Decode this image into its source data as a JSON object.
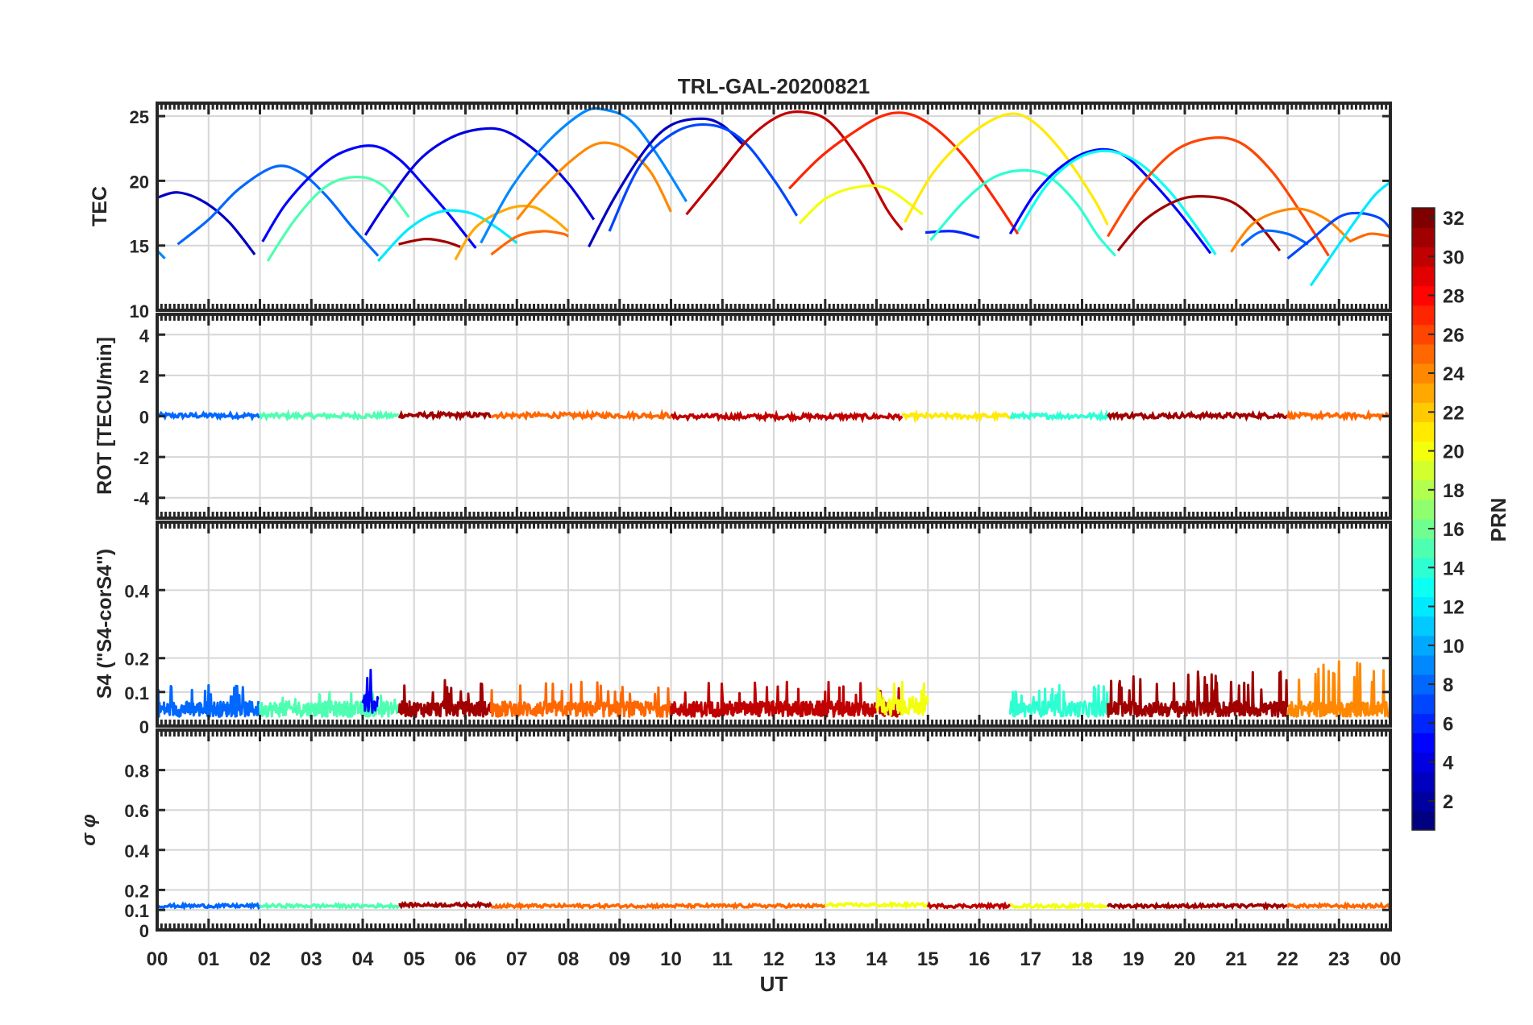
{
  "chart_data": {
    "type": "line",
    "title": "TRL-GAL-20200821",
    "xlabel": "UT",
    "xlim": [
      0,
      24
    ],
    "xtick_labels": [
      "00",
      "01",
      "02",
      "03",
      "04",
      "05",
      "06",
      "07",
      "08",
      "09",
      "10",
      "11",
      "12",
      "13",
      "14",
      "15",
      "16",
      "17",
      "18",
      "19",
      "20",
      "21",
      "22",
      "23",
      "00"
    ],
    "colorbar": {
      "label": "PRN",
      "range": [
        1,
        32
      ],
      "tick_labels": [
        "2",
        "4",
        "6",
        "8",
        "10",
        "12",
        "14",
        "16",
        "18",
        "20",
        "22",
        "24",
        "26",
        "28",
        "30",
        "32"
      ],
      "tick_values": [
        2,
        4,
        6,
        8,
        10,
        12,
        14,
        16,
        18,
        20,
        22,
        24,
        26,
        28,
        30,
        32
      ],
      "colormap": "jet"
    },
    "panels": [
      {
        "id": "tec",
        "ylabel": "TEC",
        "ylim": [
          10,
          26
        ],
        "ytick_values": [
          10,
          15,
          20,
          25
        ],
        "ytick_labels": [
          "10",
          "15",
          "20",
          "25"
        ],
        "series": [
          {
            "prn": 3,
            "x": [
              0.0,
              0.4,
              0.9,
              1.4,
              1.9
            ],
            "y": [
              18.7,
              19.1,
              18.4,
              16.8,
              14.3
            ]
          },
          {
            "prn": 9,
            "x": [
              0.0,
              0.15
            ],
            "y": [
              14.6,
              14.0
            ]
          },
          {
            "prn": 8,
            "x": [
              0.4,
              1.0,
              1.6,
              2.3,
              2.8,
              3.3,
              3.8,
              4.3
            ],
            "y": [
              15.1,
              17.0,
              19.4,
              21.1,
              20.6,
              18.8,
              16.4,
              14.2
            ]
          },
          {
            "prn": 5,
            "x": [
              2.05,
              2.5,
              3.1,
              3.6,
              4.2,
              4.7,
              5.2,
              5.7,
              6.2
            ],
            "y": [
              15.3,
              18.2,
              20.8,
              22.2,
              22.7,
              21.7,
              19.6,
              17.3,
              14.8
            ]
          },
          {
            "prn": 15,
            "x": [
              2.15,
              2.7,
              3.3,
              3.9,
              4.4,
              4.9
            ],
            "y": [
              13.8,
              17.1,
              19.6,
              20.3,
              19.6,
              17.2
            ]
          },
          {
            "prn": 4,
            "x": [
              4.05,
              4.5,
              5.1,
              5.7,
              6.3,
              6.8,
              7.4,
              8.0,
              8.5
            ],
            "y": [
              15.8,
              18.5,
              21.6,
              23.3,
              24.0,
              23.8,
              22.2,
              19.8,
              17.0
            ]
          },
          {
            "prn": 12,
            "x": [
              4.3,
              4.9,
              5.5,
              6.1,
              6.6,
              7.0
            ],
            "y": [
              13.8,
              16.3,
              17.6,
              17.5,
              16.4,
              15.2
            ]
          },
          {
            "prn": 31,
            "x": [
              4.7,
              5.2,
              5.6,
              5.9
            ],
            "y": [
              15.1,
              15.5,
              15.3,
              14.9
            ]
          },
          {
            "prn": 23,
            "x": [
              5.8,
              6.2,
              6.8,
              7.3,
              7.7,
              8.0
            ],
            "y": [
              13.9,
              16.4,
              17.8,
              18.0,
              17.1,
              16.1
            ]
          },
          {
            "prn": 25,
            "x": [
              6.5,
              7.0,
              7.5,
              7.9,
              8.0
            ],
            "y": [
              14.3,
              15.7,
              16.1,
              15.9,
              15.7
            ]
          },
          {
            "prn": 9,
            "x": [
              6.3,
              6.9,
              7.6,
              8.3,
              8.7,
              9.2,
              9.7,
              10.3
            ],
            "y": [
              15.2,
              19.5,
              23.0,
              25.3,
              25.5,
              24.7,
              22.2,
              18.4
            ]
          },
          {
            "prn": 24,
            "x": [
              7.0,
              7.5,
              8.1,
              8.6,
              9.1,
              9.6,
              10.0
            ],
            "y": [
              17.0,
              19.4,
              21.7,
              22.9,
              22.5,
              20.7,
              17.6
            ]
          },
          {
            "prn": 3,
            "x": [
              8.4,
              8.9,
              9.5,
              10.0,
              10.6,
              11.0,
              11.4
            ],
            "y": [
              14.9,
              18.7,
              22.4,
              24.3,
              24.8,
              24.3,
              22.8
            ]
          },
          {
            "prn": 7,
            "x": [
              8.8,
              9.4,
              10.1,
              10.8,
              11.4,
              12.0,
              12.45
            ],
            "y": [
              16.1,
              21.2,
              23.8,
              24.3,
              23.1,
              20.1,
              17.3
            ]
          },
          {
            "prn": 30,
            "x": [
              10.3,
              10.9,
              11.5,
              12.1,
              12.6,
              13.1,
              13.7,
              14.2,
              14.5
            ],
            "y": [
              17.4,
              20.3,
              23.2,
              25.0,
              25.3,
              24.5,
              21.4,
              17.8,
              16.2
            ]
          },
          {
            "prn": 27,
            "x": [
              12.3,
              12.9,
              13.5,
              14.1,
              14.6,
              15.1,
              15.7,
              16.3,
              16.75
            ],
            "y": [
              19.4,
              21.8,
              23.6,
              25.0,
              25.2,
              24.2,
              21.9,
              18.6,
              15.9
            ]
          },
          {
            "prn": 20,
            "x": [
              12.5,
              13.0,
              13.6,
              14.2,
              14.9
            ],
            "y": [
              16.7,
              18.6,
              19.5,
              19.4,
              17.4
            ]
          },
          {
            "prn": 21,
            "x": [
              14.55,
              15.1,
              15.8,
              16.5,
              17.0,
              17.6,
              18.2,
              18.5
            ],
            "y": [
              16.8,
              20.6,
              23.5,
              25.1,
              24.7,
              22.3,
              18.8,
              16.6
            ]
          },
          {
            "prn": 6,
            "x": [
              14.95,
              15.5,
              16.0
            ],
            "y": [
              16.0,
              16.1,
              15.6
            ]
          },
          {
            "prn": 14,
            "x": [
              15.05,
              15.7,
              16.3,
              16.9,
              17.4,
              17.9,
              18.3,
              18.65
            ],
            "y": [
              15.4,
              18.4,
              20.3,
              20.8,
              20.2,
              18.2,
              15.8,
              14.2
            ]
          },
          {
            "prn": 5,
            "x": [
              16.6,
              17.1,
              17.7,
              18.3,
              18.8,
              19.3,
              19.9,
              20.5
            ],
            "y": [
              15.9,
              19.1,
              21.4,
              22.4,
              22.0,
              20.2,
              17.5,
              14.4
            ]
          },
          {
            "prn": 13,
            "x": [
              16.75,
              17.3,
              17.9,
              18.5,
              19.1,
              19.7,
              20.2,
              20.6
            ],
            "y": [
              16.1,
              19.6,
              21.7,
              22.3,
              21.4,
              19.2,
              16.6,
              14.3
            ]
          },
          {
            "prn": 26,
            "x": [
              18.5,
              19.1,
              19.8,
              20.5,
              21.1,
              21.7,
              22.3,
              22.8
            ],
            "y": [
              15.7,
              19.4,
              22.3,
              23.3,
              22.9,
              20.7,
              17.3,
              14.2
            ]
          },
          {
            "prn": 31,
            "x": [
              18.7,
              19.2,
              19.8,
              20.3,
              20.9,
              21.4,
              21.85
            ],
            "y": [
              14.6,
              16.9,
              18.4,
              18.8,
              18.4,
              16.8,
              14.6
            ]
          },
          {
            "prn": 24,
            "x": [
              20.9,
              21.3,
              21.8,
              22.3,
              22.8,
              23.2
            ],
            "y": [
              14.5,
              16.6,
              17.6,
              17.8,
              16.9,
              15.4
            ]
          },
          {
            "prn": 8,
            "x": [
              21.1,
              21.5,
              22.0,
              22.4
            ],
            "y": [
              15.0,
              16.1,
              15.9,
              15.1
            ]
          },
          {
            "prn": 7,
            "x": [
              22.0,
              22.5,
              23.0,
              23.4,
              23.8,
              24.0
            ],
            "y": [
              14.0,
              15.6,
              17.2,
              17.5,
              17.1,
              16.3
            ]
          },
          {
            "prn": 12,
            "x": [
              22.45,
              22.9,
              23.3,
              23.7,
              24.0
            ],
            "y": [
              11.9,
              14.5,
              16.8,
              18.9,
              19.9
            ]
          },
          {
            "prn": 25,
            "x": [
              23.2,
              23.6,
              24.0
            ],
            "y": [
              15.3,
              15.9,
              15.7
            ]
          }
        ]
      },
      {
        "id": "rot",
        "ylabel": "ROT [TECU/min]",
        "ylim": [
          -5,
          5
        ],
        "ytick_values": [
          -4,
          -2,
          0,
          2,
          4
        ],
        "ytick_labels": [
          "-4",
          "-2",
          "0",
          "2",
          "4"
        ],
        "series": [
          {
            "prn": 8,
            "x": [
              0.0,
              2.0
            ],
            "y": [
              0.03,
              0.03
            ]
          },
          {
            "prn": 15,
            "x": [
              2.0,
              4.7
            ],
            "y": [
              0.02,
              0.02
            ]
          },
          {
            "prn": 31,
            "x": [
              4.7,
              6.5
            ],
            "y": [
              0.05,
              0.05
            ]
          },
          {
            "prn": 25,
            "x": [
              6.5,
              10.0
            ],
            "y": [
              0.04,
              0.04
            ]
          },
          {
            "prn": 30,
            "x": [
              10.0,
              14.5
            ],
            "y": [
              -0.02,
              -0.02
            ]
          },
          {
            "prn": 21,
            "x": [
              14.5,
              16.6
            ],
            "y": [
              0.0,
              0.0
            ]
          },
          {
            "prn": 14,
            "x": [
              16.6,
              18.5
            ],
            "y": [
              0.01,
              0.01
            ]
          },
          {
            "prn": 31,
            "x": [
              18.5,
              22.0
            ],
            "y": [
              0.03,
              0.03
            ]
          },
          {
            "prn": 25,
            "x": [
              22.0,
              24.0
            ],
            "y": [
              0.02,
              0.02
            ]
          }
        ]
      },
      {
        "id": "s4",
        "ylabel": "S4 (\"S4-corS4\")",
        "ylim": [
          0,
          0.6
        ],
        "ytick_values": [
          0,
          0.1,
          0.2,
          0.4
        ],
        "ytick_labels": [
          "0",
          "0.1",
          "0.2",
          "0.4"
        ],
        "series": [
          {
            "prn": 8,
            "x": [
              0.0,
              2.0
            ],
            "y_mean": 0.05,
            "y_peak": 0.12
          },
          {
            "prn": 15,
            "x": [
              2.0,
              4.7
            ],
            "y_mean": 0.05,
            "y_peak": 0.1
          },
          {
            "prn": 5,
            "x": [
              4.0,
              4.3
            ],
            "y_mean": 0.07,
            "y_peak": 0.165
          },
          {
            "prn": 31,
            "x": [
              4.7,
              6.5
            ],
            "y_mean": 0.05,
            "y_peak": 0.135
          },
          {
            "prn": 25,
            "x": [
              6.5,
              10.0
            ],
            "y_mean": 0.05,
            "y_peak": 0.13
          },
          {
            "prn": 30,
            "x": [
              10.0,
              14.5
            ],
            "y_mean": 0.05,
            "y_peak": 0.13
          },
          {
            "prn": 20,
            "x": [
              14.0,
              15.0
            ],
            "y_mean": 0.06,
            "y_peak": 0.13
          },
          {
            "prn": 14,
            "x": [
              16.6,
              18.5
            ],
            "y_mean": 0.05,
            "y_peak": 0.12
          },
          {
            "prn": 31,
            "x": [
              18.5,
              22.0
            ],
            "y_mean": 0.05,
            "y_peak": 0.16
          },
          {
            "prn": 24,
            "x": [
              22.0,
              24.0
            ],
            "y_mean": 0.05,
            "y_peak": 0.19
          }
        ]
      },
      {
        "id": "sigma",
        "ylabel": "σ φ",
        "ylim": [
          0,
          1
        ],
        "ytick_values": [
          0,
          0.1,
          0.2,
          0.4,
          0.6,
          0.8
        ],
        "ytick_labels": [
          "0",
          "0.1",
          "0.2",
          "0.4",
          "0.6",
          "0.8"
        ],
        "series": [
          {
            "prn": 8,
            "x": [
              0.0,
              2.0
            ],
            "y": [
              0.12,
              0.12
            ]
          },
          {
            "prn": 15,
            "x": [
              2.0,
              4.7
            ],
            "y": [
              0.12,
              0.12
            ]
          },
          {
            "prn": 31,
            "x": [
              4.7,
              6.5
            ],
            "y": [
              0.125,
              0.125
            ]
          },
          {
            "prn": 25,
            "x": [
              6.5,
              13.0
            ],
            "y": [
              0.12,
              0.12
            ]
          },
          {
            "prn": 20,
            "x": [
              13.0,
              15.0
            ],
            "y": [
              0.125,
              0.125
            ]
          },
          {
            "prn": 30,
            "x": [
              15.0,
              16.6
            ],
            "y": [
              0.12,
              0.12
            ]
          },
          {
            "prn": 20,
            "x": [
              16.6,
              18.5
            ],
            "y": [
              0.12,
              0.12
            ]
          },
          {
            "prn": 31,
            "x": [
              18.5,
              22.0
            ],
            "y": [
              0.12,
              0.12
            ]
          },
          {
            "prn": 25,
            "x": [
              22.0,
              24.0
            ],
            "y": [
              0.12,
              0.12
            ]
          }
        ]
      }
    ]
  }
}
